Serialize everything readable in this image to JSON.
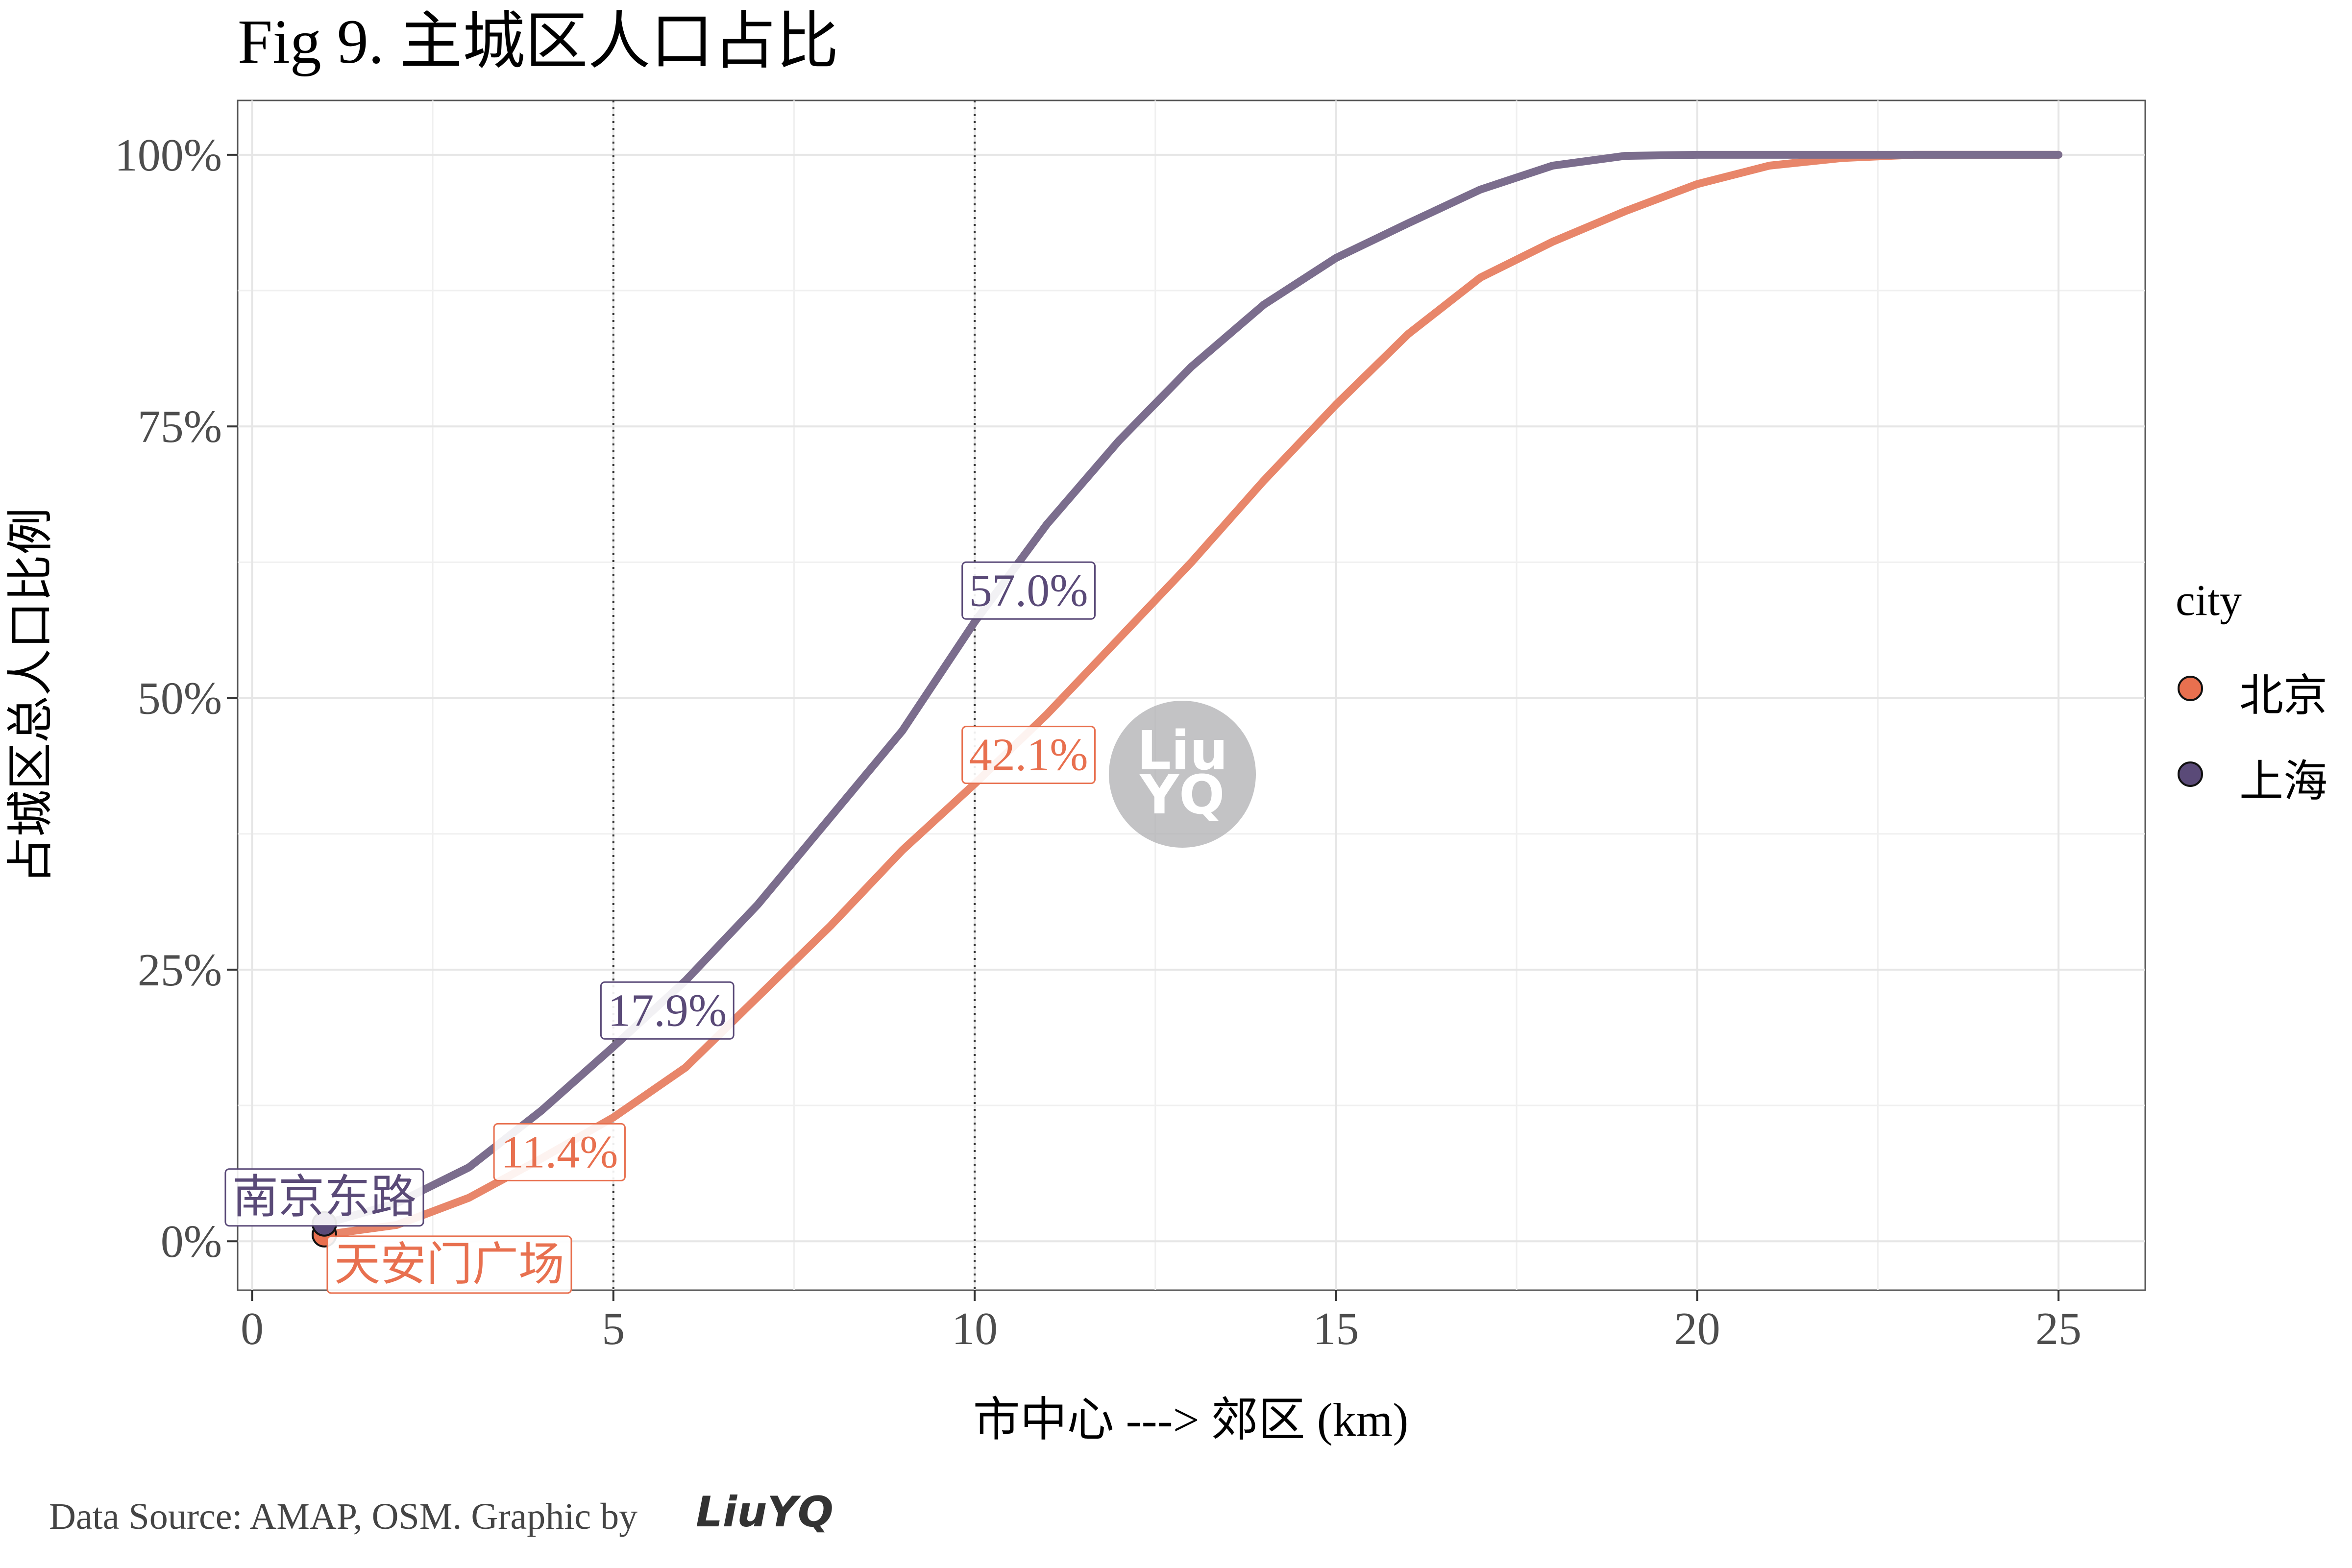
{
  "chart_data": {
    "type": "line",
    "title": "Fig 9. 主城区人口占比",
    "xlabel": "市中心 ---> 郊区 (km)",
    "ylabel": "占城区总人口比例",
    "xlim": [
      -0.2,
      26.2
    ],
    "ylim": [
      -0.045,
      1.05
    ],
    "x_ticks": [
      0,
      5,
      10,
      15,
      20,
      25
    ],
    "x_tick_labels": [
      "0",
      "5",
      "10",
      "15",
      "20",
      "25"
    ],
    "y_ticks": [
      0,
      0.25,
      0.5,
      0.75,
      1.0
    ],
    "y_tick_labels": [
      "0%",
      "25%",
      "50%",
      "75%",
      "100%"
    ],
    "grid": true,
    "vlines": [
      5,
      10
    ],
    "legend": {
      "title": "city",
      "position": "right",
      "entries": [
        "北京",
        "上海"
      ]
    },
    "x": [
      1,
      2,
      3,
      4,
      5,
      6,
      7,
      8,
      9,
      10,
      11,
      12,
      13,
      14,
      15,
      16,
      17,
      18,
      19,
      20,
      21,
      22,
      23,
      24,
      25
    ],
    "series": [
      {
        "name": "北京",
        "color": "#e8866a",
        "point_color": "#e8704f",
        "values": [
          0.006,
          0.015,
          0.04,
          0.076,
          0.114,
          0.16,
          0.225,
          0.29,
          0.36,
          0.421,
          0.485,
          0.555,
          0.625,
          0.7,
          0.77,
          0.835,
          0.887,
          0.92,
          0.948,
          0.973,
          0.99,
          0.997,
          1.0,
          1.0,
          1.0
        ]
      },
      {
        "name": "上海",
        "color": "#7b6d8d",
        "point_color": "#5a4a78",
        "values": [
          0.016,
          0.035,
          0.068,
          0.12,
          0.179,
          0.24,
          0.31,
          0.39,
          0.47,
          0.57,
          0.66,
          0.737,
          0.805,
          0.862,
          0.905,
          0.937,
          0.968,
          0.99,
          0.999,
          1.0,
          1.0,
          1.0,
          1.0,
          1.0,
          1.0
        ]
      }
    ],
    "annotations": [
      {
        "text": "南京东路",
        "x": 1,
        "y": 0.016,
        "series": "上海"
      },
      {
        "text": "天安门广场",
        "x": 1,
        "y": 0.006,
        "series": "北京"
      },
      {
        "text": "17.9%",
        "x": 5,
        "y": 0.179,
        "series": "上海"
      },
      {
        "text": "11.4%",
        "x": 5,
        "y": 0.114,
        "series": "北京"
      },
      {
        "text": "57.0%",
        "x": 10,
        "y": 0.57,
        "series": "上海"
      },
      {
        "text": "42.1%",
        "x": 10,
        "y": 0.421,
        "series": "北京"
      }
    ],
    "caption": "Data Source: AMAP, OSM. Graphic by",
    "logo_text": "LiuYQ",
    "watermark_text": [
      "Liu",
      "YQ"
    ]
  }
}
